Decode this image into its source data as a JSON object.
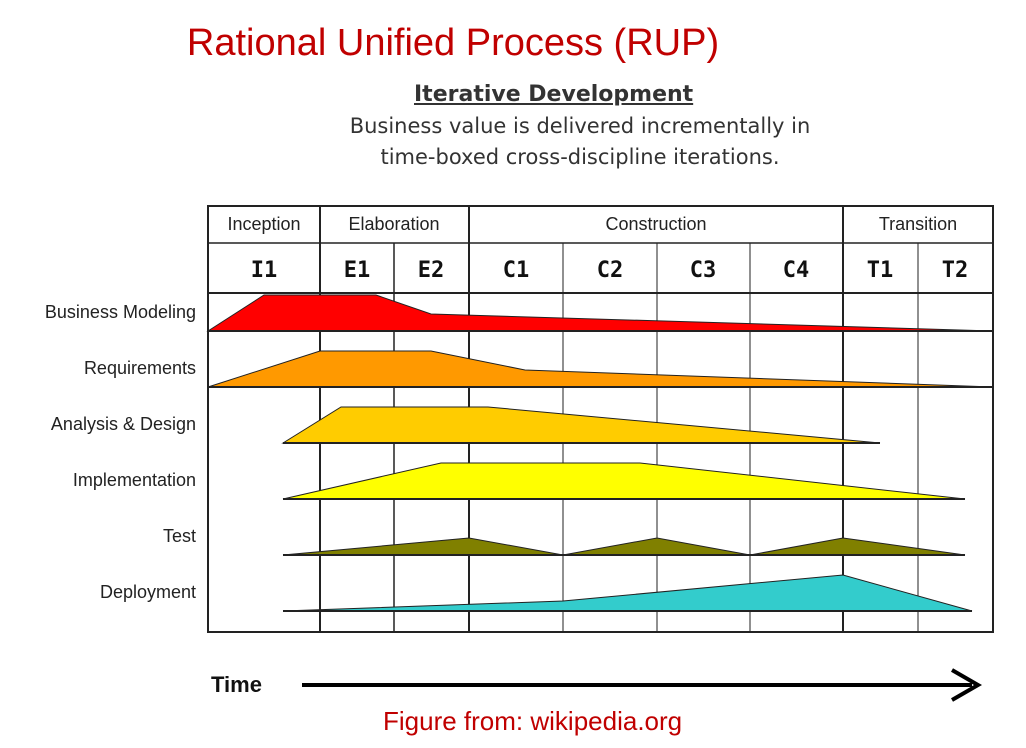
{
  "title": "Rational Unified Process (RUP)",
  "heading": "Iterative Development",
  "subtitle_line1": "Business value is delivered incrementally in",
  "subtitle_line2": "time-boxed cross-discipline iterations.",
  "source": "Figure from: wikipedia.org",
  "time_label": "Time",
  "phases": [
    {
      "name": "Inception",
      "iterations": [
        "I1"
      ]
    },
    {
      "name": "Elaboration",
      "iterations": [
        "E1",
        "E2"
      ]
    },
    {
      "name": "Construction",
      "iterations": [
        "C1",
        "C2",
        "C3",
        "C4"
      ]
    },
    {
      "name": "Transition",
      "iterations": [
        "T1",
        "T2"
      ]
    }
  ],
  "disciplines": [
    {
      "name": "Business Modeling",
      "color": "#ff0000"
    },
    {
      "name": "Requirements",
      "color": "#ff9900"
    },
    {
      "name": "Analysis & Design",
      "color": "#ffcc00"
    },
    {
      "name": "Implementation",
      "color": "#ffff00"
    },
    {
      "name": "Test",
      "color": "#808000"
    },
    {
      "name": "Deployment",
      "color": "#33cccc"
    }
  ]
}
